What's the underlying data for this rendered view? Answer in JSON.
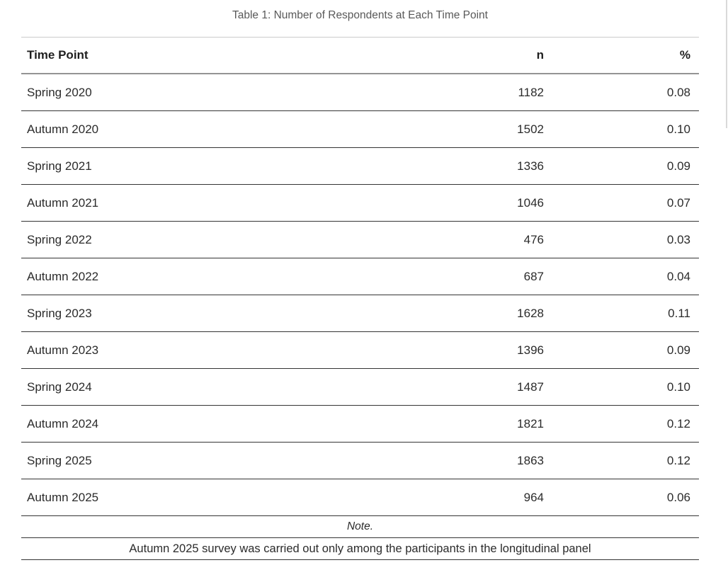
{
  "title": "Table 1: Number of Respondents at Each Time Point",
  "table": {
    "columns": {
      "time_point": "Time Point",
      "n": "n",
      "pct": "%"
    },
    "rows": [
      {
        "label": "Spring 2020",
        "n": "1182",
        "pct": "0.08"
      },
      {
        "label": "Autumn 2020",
        "n": "1502",
        "pct": "0.10"
      },
      {
        "label": "Spring 2021",
        "n": "1336",
        "pct": "0.09"
      },
      {
        "label": "Autumn 2021",
        "n": "1046",
        "pct": "0.07"
      },
      {
        "label": "Spring 2022",
        "n": "476",
        "pct": "0.03"
      },
      {
        "label": "Autumn 2022",
        "n": "687",
        "pct": "0.04"
      },
      {
        "label": "Spring 2023",
        "n": "1628",
        "pct": "0.11"
      },
      {
        "label": "Autumn 2023",
        "n": "1396",
        "pct": "0.09"
      },
      {
        "label": "Spring 2024",
        "n": "1487",
        "pct": "0.10"
      },
      {
        "label": "Autumn 2024",
        "n": "1821",
        "pct": "0.12"
      },
      {
        "label": "Spring 2025",
        "n": "1863",
        "pct": "0.12"
      },
      {
        "label": "Autumn 2025",
        "n": "964",
        "pct": "0.06"
      }
    ],
    "note_label": "Note.",
    "note_text": "Autumn 2025 survey was carried out only among the participants in the longitudinal panel"
  },
  "colors": {
    "title_text": "#595959",
    "body_text": "#2b2b2b",
    "top_border": "#cbcbcb",
    "header_border": "#949494",
    "row_border": "#343434",
    "scrollbar": "#d9d9d9"
  }
}
